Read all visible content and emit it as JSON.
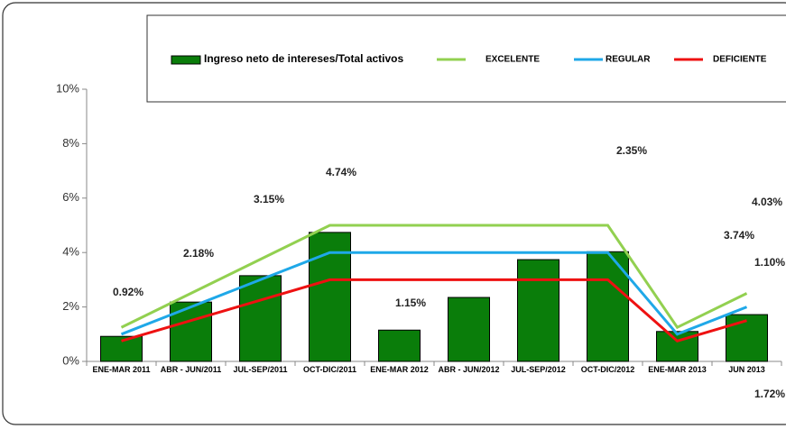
{
  "chart_data": {
    "type": "bar",
    "categories": [
      "ENE-MAR 2011",
      "ABR - JUN/2011",
      "JUL-SEP/2011",
      "OCT-DIC/2011",
      "ENE-MAR 2012",
      "ABR - JUN/2012",
      "JUL-SEP/2012",
      "OCT-DIC/2012",
      "ENE-MAR 2013",
      "JUN 2013"
    ],
    "series": [
      {
        "name": "Ingreso neto de intereses/Total activos",
        "type": "bar",
        "color": "#0a7d0a",
        "values": [
          0.92,
          2.18,
          3.15,
          4.74,
          1.15,
          2.35,
          3.74,
          4.03,
          1.1,
          1.72
        ],
        "value_labels": [
          "0.92%",
          "2.18%",
          "3.15%",
          "4.74%",
          "1.15%",
          "2.35%",
          "3.74%",
          "4.03%",
          "1.10%",
          "1.72%"
        ]
      },
      {
        "name": "EXCELENTE",
        "type": "line",
        "color": "#92d050",
        "values": [
          1.25,
          2.5,
          3.75,
          5,
          5,
          5,
          5,
          5,
          1.25,
          2.5
        ]
      },
      {
        "name": "REGULAR",
        "type": "line",
        "color": "#1fa8e8",
        "values": [
          1,
          2,
          3,
          4,
          4,
          4,
          4,
          4,
          1,
          2
        ]
      },
      {
        "name": "DEFICIENTE",
        "type": "line",
        "color": "#ee1111",
        "values": [
          0.75,
          1.5,
          2.25,
          3,
          3,
          3,
          3,
          3,
          0.75,
          1.5
        ]
      }
    ],
    "ylim": [
      0,
      10
    ],
    "yticks": [
      {
        "value": 0,
        "label": "0%"
      },
      {
        "value": 2,
        "label": "2%"
      },
      {
        "value": 4,
        "label": "4%"
      },
      {
        "value": 6,
        "label": "6%"
      },
      {
        "value": 8,
        "label": "8%"
      },
      {
        "value": 10,
        "label": "10%"
      }
    ]
  }
}
